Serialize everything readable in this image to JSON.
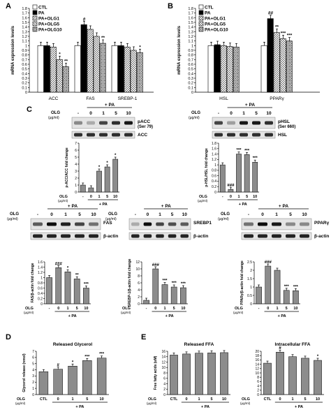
{
  "panels": {
    "A": {
      "letter": "A"
    },
    "B": {
      "letter": "B"
    },
    "C": {
      "letter": "C"
    },
    "D": {
      "letter": "D"
    },
    "E": {
      "letter": "E"
    }
  },
  "legend_items": [
    "CTL",
    "PA",
    "PA+OLG1",
    "PA+OLG5",
    "PA+OLG10"
  ],
  "blots": {
    "acc": {
      "treatment": "+ PA",
      "olg_label": "OLG",
      "unit": "(μg/ml)",
      "lanes": [
        "-",
        "0",
        "1",
        "5",
        "10"
      ],
      "top_label": "pACC",
      "top_sub": "(Ser 79)",
      "bottom_label": "ACC"
    },
    "hsl": {
      "treatment": "+ PA",
      "olg_label": "OLG",
      "unit": "(μg/ml)",
      "lanes": [
        "-",
        "0",
        "1",
        "5",
        "10"
      ],
      "top_label": "pHSL",
      "top_sub": "(Ser 660)",
      "bottom_label": "HSL"
    },
    "fas": {
      "treatment": "+ PA",
      "olg_label": "OLG",
      "unit": "(μg/ml)",
      "lanes": [
        "-",
        "0",
        "1",
        "5",
        "10"
      ],
      "top_label": "FAS",
      "bottom_label": "β-actin"
    },
    "srebp": {
      "treatment": "+ PA",
      "olg_label": "OLG",
      "unit": "(μg/ml)",
      "lanes": [
        "-",
        "0",
        "1",
        "5",
        "10"
      ],
      "top_label": "SREBP1",
      "bottom_label": "β-actin"
    },
    "ppar": {
      "treatment": "+ PA",
      "olg_label": "OLG",
      "unit": "(μg/ml)",
      "lanes": [
        "-",
        "0",
        "1",
        "5",
        "10"
      ],
      "top_label": "PPARγ",
      "bottom_label": "β-actin"
    }
  },
  "chart_data": [
    {
      "id": "A",
      "type": "bar",
      "ylabel": "mRNA expression levels",
      "ylim": [
        0,
        1.8
      ],
      "yticks": [
        "0",
        "0.1",
        "0.2",
        "0.3",
        "0.4",
        "0.5",
        "0.6",
        "0.7",
        "0.8",
        "0.9",
        "1",
        "1.1",
        "1.2",
        "1.3",
        "1.4",
        "1.5",
        "1.6",
        "1.7",
        "1.8"
      ],
      "categories": [
        "ACC",
        "FAS",
        "SREBP-1"
      ],
      "series": [
        {
          "name": "CTL",
          "values": [
            1.0,
            1.0,
            1.0
          ]
        },
        {
          "name": "PA",
          "values": [
            1.0,
            1.45,
            1.0
          ]
        },
        {
          "name": "PA+OLG1",
          "values": [
            0.97,
            1.35,
            0.97
          ]
        },
        {
          "name": "PA+OLG5",
          "values": [
            0.7,
            1.2,
            0.9
          ]
        },
        {
          "name": "PA+OLG10",
          "values": [
            0.55,
            1.05,
            0.85
          ]
        }
      ],
      "annotations": [
        [
          "",
          "",
          "",
          "*",
          "**"
        ],
        [
          "",
          "#",
          "",
          "",
          "**"
        ],
        [
          "",
          "",
          "",
          "",
          "*"
        ]
      ],
      "legend": "top-left"
    },
    {
      "id": "B",
      "type": "bar",
      "ylabel": "mRNA expression levels",
      "ylim": [
        0,
        1.8
      ],
      "yticks": [
        "0",
        "0.1",
        "0.2",
        "0.3",
        "0.4",
        "0.5",
        "0.6",
        "0.7",
        "0.8",
        "0.9",
        "1",
        "1.1",
        "1.2",
        "1.3",
        "1.4",
        "1.5",
        "1.6",
        "1.7",
        "1.8"
      ],
      "categories": [
        "HSL",
        "PPARγ"
      ],
      "series": [
        {
          "name": "CTL",
          "values": [
            1.0,
            1.0
          ]
        },
        {
          "name": "PA",
          "values": [
            1.02,
            1.58
          ]
        },
        {
          "name": "PA+OLG1",
          "values": [
            1.0,
            1.28
          ]
        },
        {
          "name": "PA+OLG5",
          "values": [
            0.98,
            1.15
          ]
        },
        {
          "name": "PA+OLG10",
          "values": [
            0.97,
            1.1
          ]
        }
      ],
      "annotations": [
        [
          "",
          "",
          "",
          "",
          ""
        ],
        [
          "",
          "##",
          "**",
          "***",
          "***"
        ]
      ],
      "legend": "top-left"
    },
    {
      "id": "C-pACC",
      "type": "bar",
      "ylabel": "p-ACC/ACC fold change",
      "ylim": [
        0,
        7
      ],
      "yticks": [
        "0",
        "1",
        "2",
        "3",
        "4",
        "5",
        "6",
        "7"
      ],
      "categories": [
        "-",
        "0",
        "1",
        "5",
        "10"
      ],
      "values": [
        1.0,
        0.6,
        3.0,
        3.6,
        4.7
      ],
      "annotations": [
        "",
        "",
        "*",
        "*",
        "*"
      ],
      "xlabel": "OLG (μg/ml)",
      "group_label": "+ PA"
    },
    {
      "id": "C-pHSL",
      "type": "bar",
      "ylabel": "p-HSL/HSL fold change",
      "ylim": [
        0,
        1.8
      ],
      "yticks": [
        "0",
        "0.2",
        "0.4",
        "0.6",
        "0.8",
        "1",
        "1.2",
        "1.4",
        "1.6",
        "1.8"
      ],
      "categories": [
        "-",
        "0",
        "1",
        "5",
        "10"
      ],
      "values": [
        1.0,
        0.1,
        1.4,
        1.38,
        1.1
      ],
      "annotations": [
        "",
        "###",
        "***",
        "***",
        "***"
      ],
      "xlabel": "OLG (μg/ml)",
      "group_label": "+ PA"
    },
    {
      "id": "C-FAS",
      "type": "bar",
      "ylabel": "FAS/β-actin fold change",
      "ylim": [
        0,
        1.6
      ],
      "yticks": [
        "0",
        "0.2",
        "0.4",
        "0.6",
        "0.8",
        "1",
        "1.2",
        "1.4",
        "1.6"
      ],
      "categories": [
        "-",
        "0",
        "1",
        "5",
        "10"
      ],
      "values": [
        1.0,
        1.38,
        1.22,
        0.95,
        0.6
      ],
      "annotations": [
        "",
        "###",
        "*",
        "**",
        "***"
      ],
      "xlabel": "OLG (μg/ml)",
      "group_label": "+ PA"
    },
    {
      "id": "C-SREBP1",
      "type": "bar",
      "ylabel": "SREBP-1/β-actin fold change",
      "ylim": [
        0,
        12
      ],
      "yticks": [
        "0",
        "2",
        "4",
        "6",
        "8",
        "10",
        "12"
      ],
      "categories": [
        "-",
        "0",
        "1",
        "5",
        "10"
      ],
      "values": [
        1.0,
        10.0,
        5.5,
        4.8,
        4.6
      ],
      "annotations": [
        "",
        "###",
        "***",
        "***",
        "***"
      ],
      "xlabel": "OLG (μg/ml)",
      "group_label": "+ PA"
    },
    {
      "id": "C-PPAR",
      "type": "bar",
      "ylabel": "PPARγ/β-actin fold change",
      "ylim": [
        0,
        2.5
      ],
      "yticks": [
        "0",
        "0.5",
        "1",
        "1.5",
        "2",
        "2.5"
      ],
      "categories": [
        "-",
        "0",
        "1",
        "5",
        "10"
      ],
      "values": [
        1.0,
        2.25,
        2.0,
        0.8,
        0.78
      ],
      "annotations": [
        "",
        "###",
        "",
        "***",
        "***"
      ],
      "xlabel": "OLG (μg/ml)",
      "group_label": "+ PA"
    },
    {
      "id": "D",
      "type": "bar",
      "title": "Released Glycerol",
      "ylabel": "Glycerol release (nmol)",
      "ylim": [
        0,
        7
      ],
      "yticks": [
        "0",
        "1",
        "2",
        "3",
        "4",
        "5",
        "6",
        "7"
      ],
      "categories": [
        "CTL",
        "0",
        "1",
        "5",
        "10"
      ],
      "values": [
        3.7,
        4.1,
        4.6,
        5.5,
        5.9
      ],
      "annotations": [
        "",
        "#",
        "*",
        "***",
        "***"
      ],
      "xlabel": "OLG (μg/ml)",
      "group_label": "+ PA"
    },
    {
      "id": "E-released",
      "type": "bar",
      "title": "Released FFA",
      "ylabel": "Free fatty acids (uM)",
      "ylim": [
        0,
        16
      ],
      "yticks": [
        "0",
        "2",
        "4",
        "6",
        "8",
        "10",
        "12",
        "14",
        "16"
      ],
      "categories": [
        "CTL",
        "0",
        "1",
        "5",
        "10"
      ],
      "values": [
        14.6,
        15.0,
        15.3,
        15.4,
        15.5
      ],
      "annotations": [
        "",
        "",
        "",
        "",
        ""
      ],
      "xlabel": "OLG (μg/ml)",
      "group_label": "+ PA"
    },
    {
      "id": "E-intracellular",
      "type": "bar",
      "title": "Intracellular FFA",
      "ylabel": "",
      "ylim": [
        0,
        20
      ],
      "yticks": [
        "0",
        "2",
        "4",
        "6",
        "8",
        "10",
        "12",
        "14",
        "16",
        "18",
        "20"
      ],
      "categories": [
        "CTL",
        "0",
        "1",
        "5",
        "10"
      ],
      "values": [
        14.5,
        19.6,
        17.5,
        16.8,
        15.8
      ],
      "annotations": [
        "",
        "#",
        "",
        "",
        "*"
      ],
      "xlabel": "OLG (μg/ml)",
      "group_label": "+ PA"
    }
  ]
}
